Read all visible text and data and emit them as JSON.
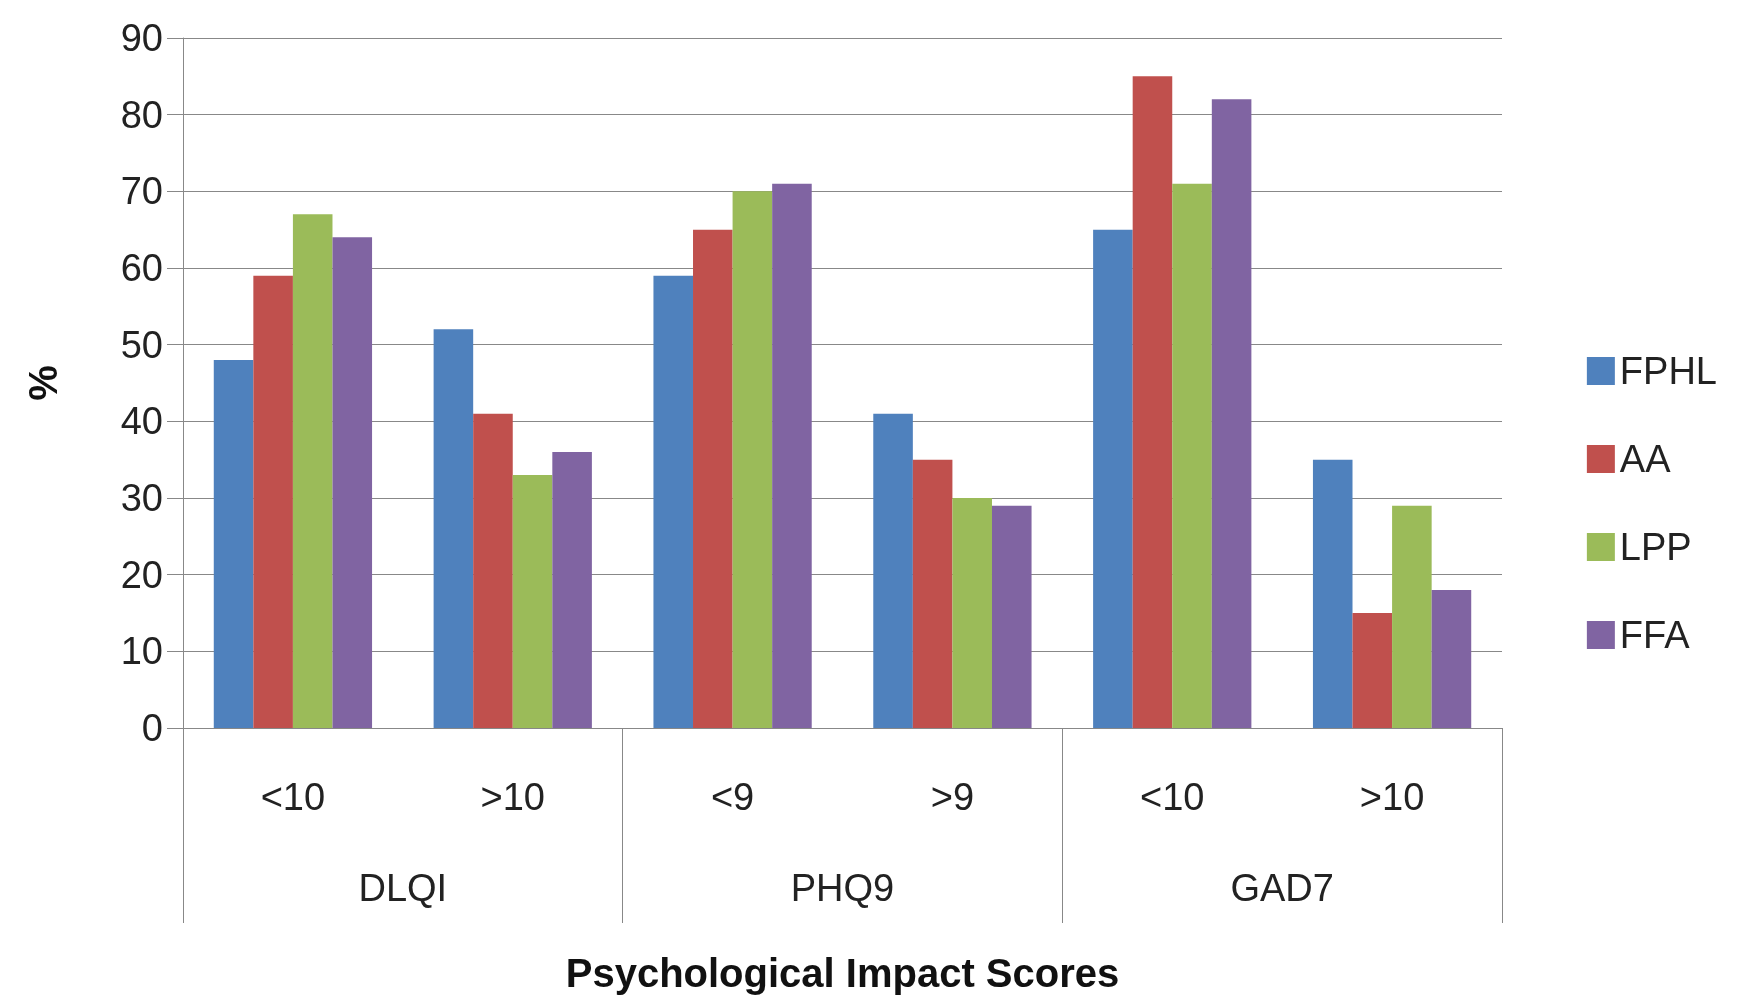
{
  "chart_data": {
    "type": "bar",
    "xlabel": "Psychological Impact Scores",
    "ylabel": "%",
    "categories": [
      "<10",
      ">10",
      "<9",
      ">9",
      "<10",
      ">10"
    ],
    "annotations": [
      "DLQI",
      "PHQ9",
      "GAD7"
    ],
    "series": [
      {
        "name": "FPHL",
        "color": "#4f81bd",
        "values": [
          48,
          52,
          59,
          41,
          65,
          35
        ]
      },
      {
        "name": "AA",
        "color": "#c0504d",
        "values": [
          59,
          41,
          65,
          35,
          85,
          15
        ]
      },
      {
        "name": "LPP",
        "color": "#9bbb59",
        "values": [
          67,
          33,
          70,
          30,
          71,
          29
        ]
      },
      {
        "name": "FFA",
        "color": "#8064a2",
        "values": [
          64,
          36,
          71,
          29,
          82,
          18
        ]
      }
    ],
    "ylim": [
      0,
      90
    ],
    "yticks": [
      0,
      10,
      20,
      30,
      40,
      50,
      60,
      70,
      80,
      90
    ],
    "grid": "y",
    "legend": "right"
  }
}
